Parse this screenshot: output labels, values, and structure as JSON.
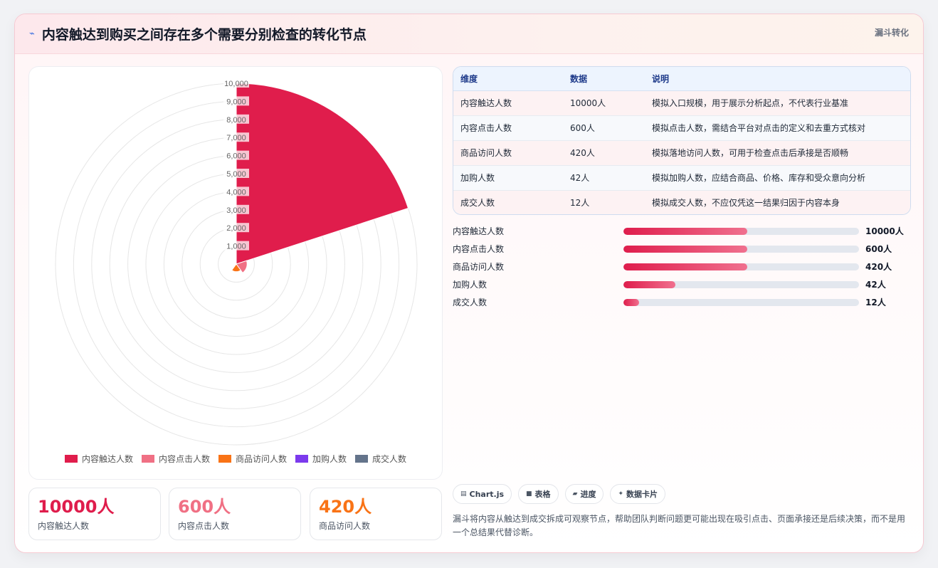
{
  "header": {
    "title": "内容触达到购买之间存在多个需要分别检查的转化节点",
    "tag": "漏斗转化"
  },
  "colors": {
    "accent": "#df1d4c",
    "series": [
      "#e01d4c",
      "#f07084",
      "#f97316",
      "#7c3aed",
      "#64748b"
    ]
  },
  "chart_data": {
    "type": "polarArea",
    "categories": [
      "内容触达人数",
      "内容点击人数",
      "商品访问人数",
      "加购人数",
      "成交人数"
    ],
    "values": [
      10000,
      600,
      420,
      42,
      12
    ],
    "r_ticks": [
      "1,000",
      "2,000",
      "3,000",
      "4,000",
      "5,000",
      "6,000",
      "7,000",
      "8,000",
      "9,000",
      "10,000"
    ],
    "r_max": 10000,
    "legend_position": "bottom",
    "grid": true
  },
  "legend": [
    "内容触达人数",
    "内容点击人数",
    "商品访问人数",
    "加购人数",
    "成交人数"
  ],
  "stats": [
    {
      "value": "10000人",
      "label": "内容触达人数",
      "color": "#df1d4c"
    },
    {
      "value": "600人",
      "label": "内容点击人数",
      "color": "#f07084"
    },
    {
      "value": "420人",
      "label": "商品访问人数",
      "color": "#f97316"
    }
  ],
  "table": {
    "headers": [
      "维度",
      "数据",
      "说明"
    ],
    "rows": [
      [
        "内容触达人数",
        "10000人",
        "模拟入口规模，用于展示分析起点，不代表行业基准"
      ],
      [
        "内容点击人数",
        "600人",
        "模拟点击人数，需结合平台对点击的定义和去重方式核对"
      ],
      [
        "商品访问人数",
        "420人",
        "模拟落地访问人数，可用于检查点击后承接是否顺畅"
      ],
      [
        "加购人数",
        "42人",
        "模拟加购人数，应结合商品、价格、库存和受众意向分析"
      ],
      [
        "成交人数",
        "12人",
        "模拟成交人数，不应仅凭这一结果归因于内容本身"
      ]
    ]
  },
  "progress": [
    {
      "label": "内容触达人数",
      "value": "10000人",
      "fill": 0.525
    },
    {
      "label": "内容点击人数",
      "value": "600人",
      "fill": 0.525
    },
    {
      "label": "商品访问人数",
      "value": "420人",
      "fill": 0.525
    },
    {
      "label": "加购人数",
      "value": "42人",
      "fill": 0.22
    },
    {
      "label": "成交人数",
      "value": "12人",
      "fill": 0.065
    }
  ],
  "badges": [
    {
      "icon": "chart-icon",
      "glyph": "▤",
      "label": "Chart.js"
    },
    {
      "icon": "table-icon",
      "glyph": "■",
      "label": "表格"
    },
    {
      "icon": "progress-icon",
      "glyph": "▰",
      "label": "进度"
    },
    {
      "icon": "card-icon",
      "glyph": "✦",
      "label": "数据卡片"
    }
  ],
  "description": "漏斗将内容从触达到成交拆成可观察节点，帮助团队判断问题更可能出现在吸引点击、页面承接还是后续决策，而不是用一个总结果代替诊断。"
}
